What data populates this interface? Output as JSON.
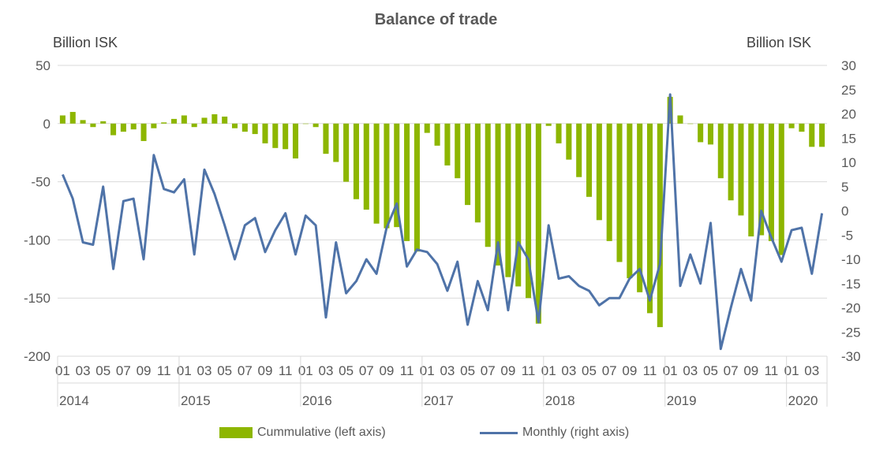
{
  "chart_data": {
    "type": "bar+line",
    "title": "Balance of trade",
    "left_axis_label": "Billion ISK",
    "right_axis_label": "Billion ISK",
    "left_ylim": [
      -200,
      50
    ],
    "left_ticks": [
      "50",
      "0",
      "-50",
      "-100",
      "-150",
      "-200"
    ],
    "right_ylim": [
      -30,
      30
    ],
    "right_ticks": [
      "30",
      "25",
      "20",
      "15",
      "10",
      "5",
      "0",
      "-5",
      "-10",
      "-15",
      "-20",
      "-25",
      "-30"
    ],
    "month_ticks": [
      "01",
      "03",
      "05",
      "07",
      "09",
      "11"
    ],
    "year_labels": [
      "2014",
      "2015",
      "2016",
      "2017",
      "2018",
      "2019",
      "2020"
    ],
    "grid": true,
    "legend_position": "bottom",
    "colors": {
      "bar": "#8DB600",
      "line": "#4F73A8"
    },
    "series": [
      {
        "name": "Cummulative (left axis)",
        "axis": "left",
        "type": "bar",
        "values": [
          7,
          10,
          3,
          -3,
          2,
          -10,
          -7,
          -5,
          -15,
          -4,
          1,
          4,
          7,
          -3,
          5,
          8,
          6,
          -4,
          -7,
          -9,
          -17,
          -21,
          -22,
          -30,
          0,
          -3,
          -26,
          -33,
          -50,
          -65,
          -74,
          -86,
          -90,
          -89,
          -101,
          -110,
          -8,
          -19,
          -36,
          -47,
          -70,
          -85,
          -106,
          -122,
          -132,
          -140,
          -150,
          -172,
          -2,
          -17,
          -31,
          -46,
          -63,
          -83,
          -101,
          -119,
          -133,
          -145,
          -163,
          -175,
          23,
          7,
          0,
          -16,
          -18,
          -47,
          -66,
          -79,
          -97,
          -96,
          -101,
          -113,
          -4,
          -7,
          -20,
          -20
        ]
      },
      {
        "name": "Monthly (right axis)",
        "axis": "right",
        "type": "line",
        "values": [
          7.5,
          2.5,
          -6.5,
          -7,
          5,
          -12,
          2,
          2.5,
          -10,
          11.5,
          4.5,
          3.8,
          6.5,
          -9,
          8.5,
          3.5,
          -3,
          -10,
          -3,
          -1.5,
          -8.5,
          -4,
          -0.5,
          -9,
          -1,
          -3,
          -22,
          -6.5,
          -17,
          -14.5,
          -10,
          -13,
          -3.5,
          1.5,
          -11.5,
          -8,
          -8.5,
          -11,
          -16.5,
          -10.5,
          -23.5,
          -14.5,
          -20.5,
          -6.5,
          -20.5,
          -6.5,
          -10,
          -23,
          -3,
          -14,
          -13.5,
          -15.5,
          -16.5,
          -19.5,
          -18,
          -18,
          -14,
          -12,
          -18.5,
          -11,
          24,
          -15.5,
          -9,
          -15,
          -2.5,
          -28.5,
          -20,
          -12,
          -18.5,
          0,
          -5.5,
          -10.5,
          -4,
          -3.5,
          -13,
          -0.5
        ]
      }
    ]
  }
}
